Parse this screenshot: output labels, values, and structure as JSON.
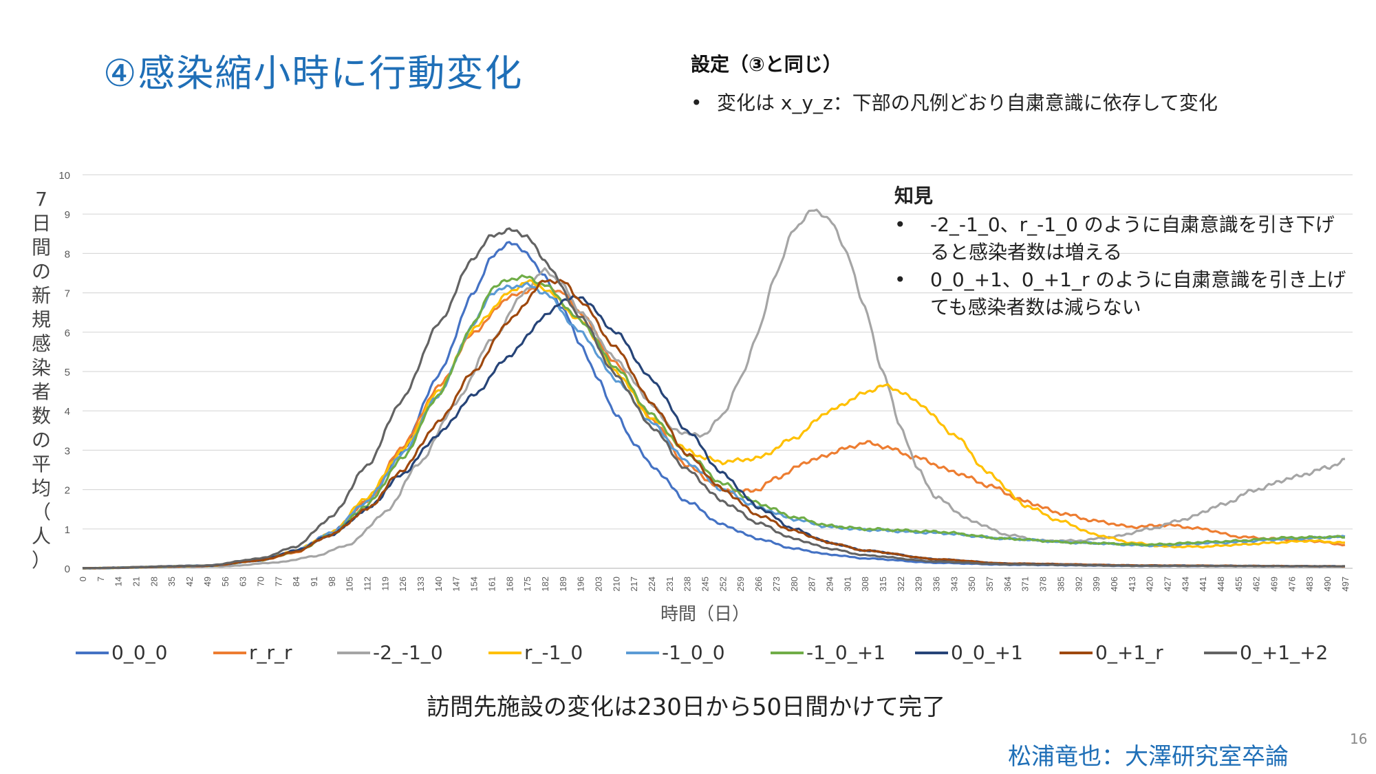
{
  "slide": {
    "title": "④感染縮小時に行動変化",
    "settings_heading": "設定（③と同じ）",
    "settings_item": "変化は x_y_z：下部の凡例どおり自粛意識に依存して変化",
    "bullet": "•",
    "findings_heading": "知見",
    "findings": [
      "-2_-1_0、r_-1_0 のように自粛意識を引き下げると感染者数は増える",
      "0_0_+1、0_+1_r のように自粛意識を引き上げても感染者数は減らない"
    ],
    "caption": "訪問先施設の変化は230日から50日間かけて完了",
    "author": "松浦竜也：大澤研究室卒論",
    "page_number": "16"
  },
  "chart_data": {
    "type": "line",
    "title": "",
    "xlabel": "時間（日）",
    "ylabel": "7日間の新規感染者数の平均（人）",
    "xlim": [
      0,
      500
    ],
    "ylim": [
      0,
      10
    ],
    "yticks": [
      0,
      1,
      2,
      3,
      4,
      5,
      6,
      7,
      8,
      9,
      10
    ],
    "xtick_step": 7,
    "grid": true,
    "legend_position": "bottom",
    "series": [
      {
        "name": "0_0_0",
        "color": "#4472c4",
        "points": [
          [
            0,
            0
          ],
          [
            49,
            0.07
          ],
          [
            70,
            0.2
          ],
          [
            84,
            0.45
          ],
          [
            98,
            0.9
          ],
          [
            112,
            1.7
          ],
          [
            126,
            3.0
          ],
          [
            140,
            4.9
          ],
          [
            154,
            7.0
          ],
          [
            161,
            7.9
          ],
          [
            168,
            8.3
          ],
          [
            175,
            8.0
          ],
          [
            182,
            7.4
          ],
          [
            189,
            6.6
          ],
          [
            196,
            5.7
          ],
          [
            203,
            4.8
          ],
          [
            210,
            3.9
          ],
          [
            217,
            3.2
          ],
          [
            224,
            2.6
          ],
          [
            238,
            1.7
          ],
          [
            252,
            1.1
          ],
          [
            266,
            0.75
          ],
          [
            280,
            0.5
          ],
          [
            294,
            0.35
          ],
          [
            308,
            0.25
          ],
          [
            336,
            0.14
          ],
          [
            364,
            0.09
          ],
          [
            420,
            0.06
          ],
          [
            497,
            0.05
          ]
        ]
      },
      {
        "name": "r_r_r",
        "color": "#ed7d31",
        "points": [
          [
            0,
            0
          ],
          [
            49,
            0.06
          ],
          [
            70,
            0.2
          ],
          [
            84,
            0.4
          ],
          [
            98,
            0.9
          ],
          [
            112,
            1.7
          ],
          [
            126,
            3.1
          ],
          [
            140,
            4.6
          ],
          [
            154,
            6.0
          ],
          [
            168,
            6.9
          ],
          [
            182,
            7.2
          ],
          [
            189,
            7.0
          ],
          [
            196,
            6.5
          ],
          [
            210,
            5.2
          ],
          [
            224,
            3.8
          ],
          [
            238,
            2.6
          ],
          [
            252,
            2.0
          ],
          [
            259,
            1.95
          ],
          [
            266,
            2.0
          ],
          [
            273,
            2.3
          ],
          [
            287,
            2.75
          ],
          [
            301,
            3.05
          ],
          [
            308,
            3.2
          ],
          [
            315,
            3.1
          ],
          [
            329,
            2.8
          ],
          [
            343,
            2.45
          ],
          [
            357,
            2.1
          ],
          [
            371,
            1.7
          ],
          [
            385,
            1.4
          ],
          [
            399,
            1.2
          ],
          [
            413,
            1.05
          ],
          [
            427,
            1.1
          ],
          [
            441,
            1.0
          ],
          [
            455,
            0.8
          ],
          [
            469,
            0.75
          ],
          [
            483,
            0.7
          ],
          [
            497,
            0.6
          ]
        ]
      },
      {
        "name": "-2_-1_0",
        "color": "#a5a5a5",
        "points": [
          [
            0,
            0
          ],
          [
            56,
            0.05
          ],
          [
            77,
            0.15
          ],
          [
            91,
            0.3
          ],
          [
            105,
            0.6
          ],
          [
            119,
            1.4
          ],
          [
            133,
            2.7
          ],
          [
            147,
            4.2
          ],
          [
            161,
            5.8
          ],
          [
            175,
            7.1
          ],
          [
            182,
            7.6
          ],
          [
            189,
            7.2
          ],
          [
            196,
            6.5
          ],
          [
            210,
            5.3
          ],
          [
            224,
            4.2
          ],
          [
            231,
            3.6
          ],
          [
            238,
            3.4
          ],
          [
            245,
            3.4
          ],
          [
            252,
            3.9
          ],
          [
            259,
            4.8
          ],
          [
            266,
            6.0
          ],
          [
            273,
            7.5
          ],
          [
            280,
            8.6
          ],
          [
            287,
            9.1
          ],
          [
            294,
            8.9
          ],
          [
            301,
            8.0
          ],
          [
            308,
            6.6
          ],
          [
            315,
            5.0
          ],
          [
            322,
            3.6
          ],
          [
            329,
            2.5
          ],
          [
            336,
            1.8
          ],
          [
            350,
            1.2
          ],
          [
            364,
            0.85
          ],
          [
            378,
            0.7
          ],
          [
            392,
            0.7
          ],
          [
            406,
            0.8
          ],
          [
            420,
            1.0
          ],
          [
            434,
            1.25
          ],
          [
            448,
            1.6
          ],
          [
            462,
            2.0
          ],
          [
            476,
            2.3
          ],
          [
            490,
            2.55
          ],
          [
            497,
            2.75
          ]
        ]
      },
      {
        "name": "r_-1_0",
        "color": "#ffc000",
        "points": [
          [
            0,
            0
          ],
          [
            49,
            0.06
          ],
          [
            70,
            0.2
          ],
          [
            84,
            0.45
          ],
          [
            98,
            0.9
          ],
          [
            112,
            1.8
          ],
          [
            126,
            3.0
          ],
          [
            140,
            4.5
          ],
          [
            154,
            6.1
          ],
          [
            168,
            7.0
          ],
          [
            175,
            7.3
          ],
          [
            182,
            7.1
          ],
          [
            196,
            6.3
          ],
          [
            210,
            5.0
          ],
          [
            224,
            3.8
          ],
          [
            238,
            3.0
          ],
          [
            245,
            2.8
          ],
          [
            252,
            2.7
          ],
          [
            266,
            2.8
          ],
          [
            280,
            3.3
          ],
          [
            294,
            4.0
          ],
          [
            308,
            4.45
          ],
          [
            315,
            4.65
          ],
          [
            322,
            4.5
          ],
          [
            329,
            4.2
          ],
          [
            343,
            3.4
          ],
          [
            357,
            2.4
          ],
          [
            371,
            1.6
          ],
          [
            385,
            1.2
          ],
          [
            399,
            0.85
          ],
          [
            413,
            0.65
          ],
          [
            427,
            0.55
          ],
          [
            441,
            0.55
          ],
          [
            455,
            0.6
          ],
          [
            469,
            0.65
          ],
          [
            483,
            0.7
          ],
          [
            497,
            0.65
          ]
        ]
      },
      {
        "name": "-1_0_0",
        "color": "#5b9bd5",
        "points": [
          [
            0,
            0
          ],
          [
            49,
            0.06
          ],
          [
            70,
            0.2
          ],
          [
            84,
            0.45
          ],
          [
            98,
            0.9
          ],
          [
            112,
            1.7
          ],
          [
            126,
            2.9
          ],
          [
            140,
            4.4
          ],
          [
            154,
            6.2
          ],
          [
            161,
            7.0
          ],
          [
            168,
            7.15
          ],
          [
            175,
            7.2
          ],
          [
            182,
            7.0
          ],
          [
            196,
            6.0
          ],
          [
            210,
            4.8
          ],
          [
            224,
            3.7
          ],
          [
            238,
            2.7
          ],
          [
            252,
            2.0
          ],
          [
            266,
            1.55
          ],
          [
            280,
            1.25
          ],
          [
            294,
            1.05
          ],
          [
            308,
            0.98
          ],
          [
            336,
            0.9
          ],
          [
            364,
            0.75
          ],
          [
            392,
            0.65
          ],
          [
            420,
            0.58
          ],
          [
            448,
            0.65
          ],
          [
            476,
            0.75
          ],
          [
            497,
            0.8
          ]
        ]
      },
      {
        "name": "-1_0_+1",
        "color": "#70ad47",
        "points": [
          [
            0,
            0
          ],
          [
            49,
            0.06
          ],
          [
            70,
            0.2
          ],
          [
            84,
            0.42
          ],
          [
            98,
            0.85
          ],
          [
            112,
            1.6
          ],
          [
            126,
            2.8
          ],
          [
            140,
            4.4
          ],
          [
            154,
            6.2
          ],
          [
            161,
            7.1
          ],
          [
            168,
            7.35
          ],
          [
            175,
            7.4
          ],
          [
            182,
            7.2
          ],
          [
            196,
            6.3
          ],
          [
            210,
            5.1
          ],
          [
            224,
            3.9
          ],
          [
            238,
            2.9
          ],
          [
            252,
            2.15
          ],
          [
            266,
            1.65
          ],
          [
            280,
            1.3
          ],
          [
            294,
            1.08
          ],
          [
            308,
            1.0
          ],
          [
            336,
            0.93
          ],
          [
            364,
            0.75
          ],
          [
            392,
            0.65
          ],
          [
            420,
            0.6
          ],
          [
            448,
            0.68
          ],
          [
            476,
            0.78
          ],
          [
            497,
            0.8
          ]
        ]
      },
      {
        "name": "0_0_+1",
        "color": "#264478",
        "points": [
          [
            0,
            0
          ],
          [
            49,
            0.06
          ],
          [
            70,
            0.2
          ],
          [
            84,
            0.45
          ],
          [
            98,
            0.85
          ],
          [
            112,
            1.5
          ],
          [
            126,
            2.4
          ],
          [
            140,
            3.4
          ],
          [
            154,
            4.4
          ],
          [
            168,
            5.4
          ],
          [
            182,
            6.4
          ],
          [
            189,
            6.8
          ],
          [
            196,
            6.9
          ],
          [
            210,
            6.0
          ],
          [
            224,
            4.8
          ],
          [
            238,
            3.5
          ],
          [
            252,
            2.4
          ],
          [
            266,
            1.55
          ],
          [
            280,
            1.0
          ],
          [
            294,
            0.65
          ],
          [
            308,
            0.45
          ],
          [
            336,
            0.23
          ],
          [
            364,
            0.12
          ],
          [
            420,
            0.07
          ],
          [
            497,
            0.05
          ]
        ]
      },
      {
        "name": "0_+1_r",
        "color": "#9e480e",
        "points": [
          [
            0,
            0
          ],
          [
            49,
            0.06
          ],
          [
            70,
            0.2
          ],
          [
            84,
            0.42
          ],
          [
            98,
            0.85
          ],
          [
            112,
            1.5
          ],
          [
            126,
            2.5
          ],
          [
            140,
            3.7
          ],
          [
            154,
            5.0
          ],
          [
            168,
            6.3
          ],
          [
            182,
            7.3
          ],
          [
            189,
            7.3
          ],
          [
            196,
            6.8
          ],
          [
            210,
            5.6
          ],
          [
            224,
            4.2
          ],
          [
            238,
            2.9
          ],
          [
            252,
            2.0
          ],
          [
            266,
            1.35
          ],
          [
            280,
            0.95
          ],
          [
            294,
            0.65
          ],
          [
            308,
            0.45
          ],
          [
            336,
            0.23
          ],
          [
            364,
            0.12
          ],
          [
            420,
            0.07
          ],
          [
            497,
            0.05
          ]
        ]
      },
      {
        "name": "0_+1_+2",
        "color": "#636363",
        "points": [
          [
            0,
            0
          ],
          [
            49,
            0.07
          ],
          [
            70,
            0.25
          ],
          [
            84,
            0.55
          ],
          [
            98,
            1.3
          ],
          [
            112,
            2.6
          ],
          [
            126,
            4.3
          ],
          [
            140,
            6.2
          ],
          [
            154,
            7.9
          ],
          [
            161,
            8.45
          ],
          [
            168,
            8.6
          ],
          [
            175,
            8.45
          ],
          [
            182,
            7.8
          ],
          [
            196,
            6.4
          ],
          [
            210,
            4.9
          ],
          [
            224,
            3.6
          ],
          [
            238,
            2.5
          ],
          [
            252,
            1.7
          ],
          [
            266,
            1.15
          ],
          [
            280,
            0.75
          ],
          [
            294,
            0.5
          ],
          [
            308,
            0.33
          ],
          [
            336,
            0.17
          ],
          [
            364,
            0.1
          ],
          [
            420,
            0.06
          ],
          [
            497,
            0.05
          ]
        ]
      }
    ]
  }
}
